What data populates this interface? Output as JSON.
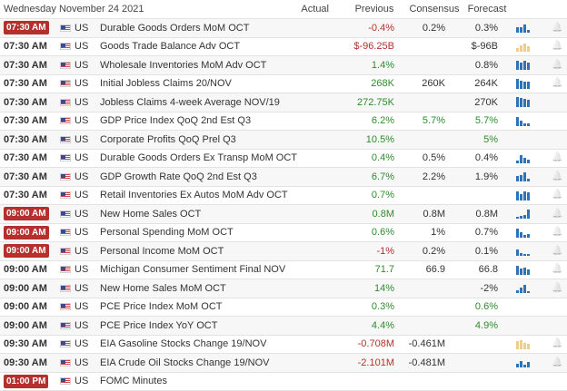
{
  "header": {
    "date": "Wednesday November 24 2021",
    "actual": "Actual",
    "previous": "Previous",
    "consensus": "Consensus",
    "forecast": "Forecast"
  },
  "colors": {
    "highlight_time": "#b5302c",
    "positive": "#2e8b2e",
    "negative": "#b5302c",
    "spark": "#2f72b8",
    "spark_forecast": "#f0cc8d"
  },
  "rows": [
    {
      "time": "07:30 AM",
      "hl": true,
      "country": "US",
      "name": "Durable Goods Orders MoM OCT",
      "actual": "",
      "previous": "-0.4%",
      "pc": "neg",
      "consensus": "0.2%",
      "forecast": "0.3%",
      "spark": [
        0.5,
        0.5,
        0.8,
        0.3
      ],
      "bell": true
    },
    {
      "time": "07:30 AM",
      "hl": false,
      "country": "US",
      "name": "Goods Trade Balance Adv OCT",
      "actual": "",
      "previous": "$-96.25B",
      "pc": "neg",
      "consensus": "",
      "forecast": "$-96B",
      "spark": [
        0.4,
        0.6,
        0.8,
        0.5
      ],
      "sparkfc": true,
      "bell": true
    },
    {
      "time": "07:30 AM",
      "hl": false,
      "country": "US",
      "name": "Wholesale Inventories MoM Adv OCT",
      "actual": "",
      "previous": "1.4%",
      "pc": "pos",
      "consensus": "",
      "forecast": "0.8%",
      "spark": [
        0.9,
        0.7,
        0.9,
        0.7
      ],
      "bell": true
    },
    {
      "time": "07:30 AM",
      "hl": false,
      "country": "US",
      "name": "Initial Jobless Claims 20/NOV",
      "actual": "",
      "previous": "268K",
      "pc": "pos",
      "consensus": "260K",
      "forecast": "264K",
      "spark": [
        1,
        0.8,
        0.7,
        0.7
      ],
      "bell": true
    },
    {
      "time": "07:30 AM",
      "hl": false,
      "country": "US",
      "name": "Jobless Claims 4-week Average NOV/19",
      "actual": "",
      "previous": "272.75K",
      "pc": "pos",
      "consensus": "",
      "forecast": "270K",
      "spark": [
        1,
        0.9,
        0.8,
        0.7
      ],
      "bell": false
    },
    {
      "time": "07:30 AM",
      "hl": false,
      "country": "US",
      "name": "GDP Price Index QoQ 2nd Est Q3",
      "actual": "",
      "previous": "6.2%",
      "pc": "pos",
      "consensus": "5.7%",
      "forecast": "5.7%",
      "cons_c": "pos",
      "fcst_c": "pos",
      "spark": [
        0.9,
        0.5,
        0.3,
        0.3
      ],
      "bell": false
    },
    {
      "time": "07:30 AM",
      "hl": false,
      "country": "US",
      "name": "Corporate Profits QoQ Prel Q3",
      "actual": "",
      "previous": "10.5%",
      "pc": "pos",
      "consensus": "",
      "forecast": "5%",
      "fcst_c": "pos",
      "spark": [],
      "bell": false
    },
    {
      "time": "07:30 AM",
      "hl": false,
      "country": "US",
      "name": "Durable Goods Orders Ex Transp MoM OCT",
      "actual": "",
      "previous": "0.4%",
      "pc": "pos",
      "consensus": "0.5%",
      "forecast": "0.4%",
      "spark": [
        0.3,
        0.8,
        0.5,
        0.4
      ],
      "bell": true
    },
    {
      "time": "07:30 AM",
      "hl": false,
      "country": "US",
      "name": "GDP Growth Rate QoQ 2nd Est Q3",
      "actual": "",
      "previous": "6.7%",
      "pc": "pos",
      "consensus": "2.2%",
      "forecast": "1.9%",
      "spark": [
        0.5,
        0.6,
        0.9,
        0.3
      ],
      "bell": true
    },
    {
      "time": "07:30 AM",
      "hl": false,
      "country": "US",
      "name": "Retail Inventories Ex Autos MoM Adv OCT",
      "actual": "",
      "previous": "0.7%",
      "pc": "pos",
      "consensus": "",
      "forecast": "",
      "spark": [
        0.9,
        0.6,
        0.9,
        0.8
      ],
      "bell": true
    },
    {
      "time": "09:00 AM",
      "hl": true,
      "country": "US",
      "name": "New Home Sales OCT",
      "actual": "",
      "previous": "0.8M",
      "pc": "pos",
      "consensus": "0.8M",
      "forecast": "0.8M",
      "spark": [
        0.2,
        0.3,
        0.4,
        0.9
      ],
      "bell": true
    },
    {
      "time": "09:00 AM",
      "hl": true,
      "country": "US",
      "name": "Personal Spending MoM OCT",
      "actual": "",
      "previous": "0.6%",
      "pc": "pos",
      "consensus": "1%",
      "forecast": "0.7%",
      "spark": [
        0.9,
        0.5,
        0.3,
        0.4
      ],
      "bell": true
    },
    {
      "time": "09:00 AM",
      "hl": true,
      "country": "US",
      "name": "Personal Income MoM OCT",
      "actual": "",
      "previous": "-1%",
      "pc": "neg",
      "consensus": "0.2%",
      "forecast": "0.1%",
      "spark": [
        0.6,
        0.3,
        0.2,
        0.2
      ],
      "bell": true
    },
    {
      "time": "09:00 AM",
      "hl": false,
      "country": "US",
      "name": "Michigan Consumer Sentiment Final NOV",
      "actual": "",
      "previous": "71.7",
      "pc": "pos",
      "consensus": "66.9",
      "forecast": "66.8",
      "spark": [
        0.9,
        0.6,
        0.7,
        0.5
      ],
      "bell": true
    },
    {
      "time": "09:00 AM",
      "hl": false,
      "country": "US",
      "name": "New Home Sales MoM OCT",
      "actual": "",
      "previous": "14%",
      "pc": "pos",
      "consensus": "",
      "forecast": "-2%",
      "spark": [
        0.3,
        0.5,
        0.8,
        0.2
      ],
      "bell": true
    },
    {
      "time": "09:00 AM",
      "hl": false,
      "country": "US",
      "name": "PCE Price Index MoM OCT",
      "actual": "",
      "previous": "0.3%",
      "pc": "pos",
      "consensus": "",
      "forecast": "0.6%",
      "fcst_c": "pos",
      "spark": [],
      "bell": false
    },
    {
      "time": "09:00 AM",
      "hl": false,
      "country": "US",
      "name": "PCE Price Index YoY OCT",
      "actual": "",
      "previous": "4.4%",
      "pc": "pos",
      "consensus": "",
      "forecast": "4.9%",
      "fcst_c": "pos",
      "spark": [],
      "bell": false
    },
    {
      "time": "09:30 AM",
      "hl": false,
      "country": "US",
      "name": "EIA Gasoline Stocks Change 19/NOV",
      "actual": "",
      "previous": "-0.708M",
      "pc": "neg",
      "consensus": "-0.461M",
      "forecast": "",
      "spark": [
        0.8,
        0.9,
        0.6,
        0.5
      ],
      "sparkfc": true,
      "bell": true
    },
    {
      "time": "09:30 AM",
      "hl": false,
      "country": "US",
      "name": "EIA Crude Oil Stocks Change 19/NOV",
      "actual": "",
      "previous": "-2.101M",
      "pc": "neg",
      "consensus": "-0.481M",
      "forecast": "",
      "spark": [
        0.4,
        0.6,
        0.3,
        0.5
      ],
      "bell": true
    },
    {
      "time": "01:00 PM",
      "hl": true,
      "country": "US",
      "name": "FOMC Minutes",
      "actual": "",
      "previous": "",
      "pc": "",
      "consensus": "",
      "forecast": "",
      "spark": [],
      "bell": false
    }
  ]
}
